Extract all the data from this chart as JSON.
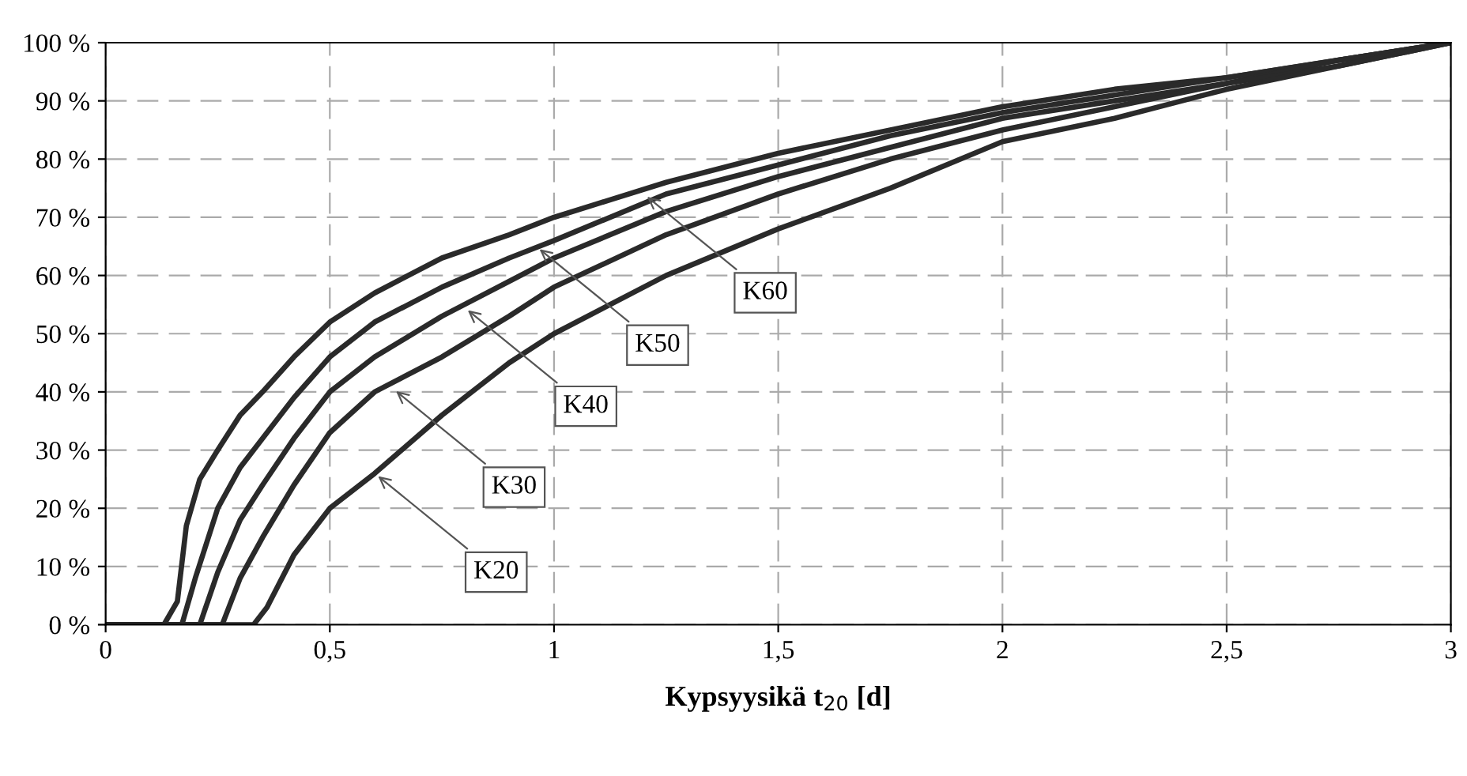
{
  "chart_data": {
    "type": "line",
    "xlabel": "Kypsyysikä t$_{20}$ [d]",
    "xlim": [
      0,
      3
    ],
    "xticks": [
      0,
      {
        "value": 0.5,
        "label": "0,5"
      },
      1,
      {
        "value": 1.5,
        "label": "1,5"
      },
      2,
      {
        "value": 2.5,
        "label": "2,5"
      },
      3
    ],
    "ylim": [
      0,
      100
    ],
    "yticks": [
      {
        "value": 0,
        "label": "0 %"
      },
      {
        "value": 10,
        "label": "10 %"
      },
      {
        "value": 20,
        "label": "20 %"
      },
      {
        "value": 30,
        "label": "30 %"
      },
      {
        "value": 40,
        "label": "40 %"
      },
      {
        "value": 50,
        "label": "50 %"
      },
      {
        "value": 60,
        "label": "60 %"
      },
      {
        "value": 70,
        "label": "70 %"
      },
      {
        "value": 80,
        "label": "80 %"
      },
      {
        "value": 90,
        "label": "90 %"
      },
      {
        "value": 100,
        "label": "100 %"
      }
    ],
    "grid": true,
    "line_style": "solid",
    "marker": "none",
    "series": [
      {
        "color": "#2a2a2a",
        "x": [
          0,
          0.13,
          0.16,
          0.18,
          0.21,
          0.25,
          0.3,
          0.35,
          0.42,
          0.5,
          0.6,
          0.75,
          0.9,
          1,
          1.25,
          1.5,
          1.75,
          2,
          2.25,
          2.5,
          2.75,
          3
        ],
        "values": [
          0,
          0,
          4,
          17,
          25,
          30,
          36,
          40,
          46,
          52,
          57,
          63,
          67,
          70,
          76,
          81,
          85,
          89,
          92,
          94,
          97,
          100
        ]
      },
      {
        "color": "#2a2a2a",
        "x": [
          0,
          0.17,
          0.2,
          0.25,
          0.3,
          0.35,
          0.42,
          0.5,
          0.6,
          0.75,
          0.9,
          1,
          1.25,
          1.5,
          1.75,
          2,
          2.25,
          2.5,
          2.75,
          3
        ],
        "values": [
          0,
          0,
          8,
          20,
          27,
          32,
          39,
          46,
          52,
          58,
          63,
          66,
          74,
          79,
          84,
          88,
          91,
          94,
          97,
          100
        ]
      },
      {
        "color": "#2a2a2a",
        "x": [
          0,
          0.21,
          0.25,
          0.3,
          0.35,
          0.42,
          0.5,
          0.6,
          0.75,
          0.9,
          1,
          1.25,
          1.5,
          1.75,
          2,
          2.25,
          2.5,
          2.75,
          3
        ],
        "values": [
          0,
          0,
          9,
          18,
          24,
          32,
          40,
          46,
          53,
          59,
          63,
          71,
          77,
          82,
          87,
          90,
          93,
          97,
          100
        ]
      },
      {
        "color": "#2a2a2a",
        "x": [
          0,
          0.26,
          0.3,
          0.35,
          0.42,
          0.5,
          0.6,
          0.75,
          0.9,
          1,
          1.25,
          1.5,
          1.75,
          2,
          2.25,
          2.5,
          2.75,
          3
        ],
        "values": [
          0,
          0,
          8,
          15,
          24,
          33,
          40,
          46,
          53,
          58,
          67,
          74,
          80,
          85,
          89,
          93,
          96,
          100
        ]
      },
      {
        "color": "#2a2a2a",
        "x": [
          0,
          0.33,
          0.36,
          0.42,
          0.5,
          0.6,
          0.75,
          0.9,
          1,
          1.25,
          1.5,
          1.75,
          2,
          2.25,
          2.5,
          2.75,
          3
        ],
        "values": [
          0,
          0,
          3,
          12,
          20,
          26,
          36,
          45,
          50,
          60,
          68,
          75,
          83,
          87,
          92,
          96,
          100
        ]
      }
    ],
    "annotations": [
      {
        "text": "K20",
        "x": 0.6,
        "y": 26
      },
      {
        "text": "K30",
        "x": 0.64,
        "y": 40.6
      },
      {
        "text": "K40",
        "x": 0.8,
        "y": 54.5
      },
      {
        "text": "K50",
        "x": 0.96,
        "y": 65
      },
      {
        "text": "K60",
        "x": 1.2,
        "y": 74
      }
    ]
  }
}
